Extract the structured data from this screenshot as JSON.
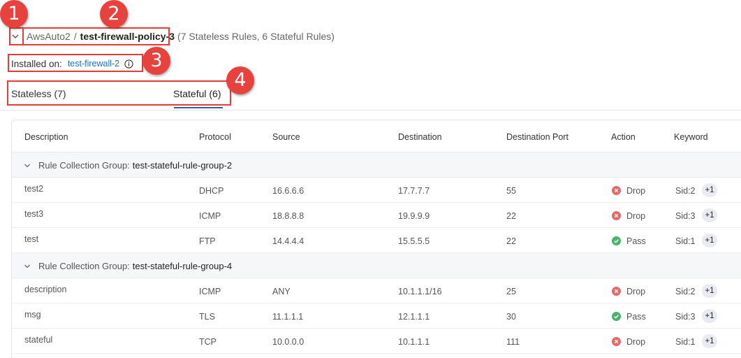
{
  "callouts": [
    "1",
    "2",
    "3",
    "4"
  ],
  "header": {
    "parent": "AwsAuto2",
    "separator": "/",
    "current": "test-firewall-policy-3",
    "summary": "(7 Stateless Rules, 6 Stateful Rules)"
  },
  "installed": {
    "label": "Installed on:",
    "link": "test-firewall-2"
  },
  "tabs": {
    "stateless": "Stateless (7)",
    "stateful": "Stateful (6)",
    "active": "stateful"
  },
  "table": {
    "columns": [
      "Description",
      "Protocol",
      "Source",
      "Destination",
      "Destination Port",
      "Action",
      "Keyword"
    ],
    "group_label": "Rule Collection Group:",
    "groups": [
      {
        "name": "test-stateful-rule-group-2",
        "rows": [
          {
            "description": "test2",
            "protocol": "DHCP",
            "source": "16.6.6.6",
            "destination": "17.7.7.7",
            "port": "55",
            "action": "Drop",
            "keyword": "Sid:2",
            "more": "+1"
          },
          {
            "description": "test3",
            "protocol": "ICMP",
            "source": "18.8.8.8",
            "destination": "19.9.9.9",
            "port": "22",
            "action": "Drop",
            "keyword": "Sid:3",
            "more": "+1"
          },
          {
            "description": "test",
            "protocol": "FTP",
            "source": "14.4.4.4",
            "destination": "15.5.5.5",
            "port": "22",
            "action": "Pass",
            "keyword": "Sid:1",
            "more": "+1"
          }
        ]
      },
      {
        "name": "test-stateful-rule-group-4",
        "rows": [
          {
            "description": "description",
            "protocol": "ICMP",
            "source": "ANY",
            "destination": "10.1.1.1/16",
            "port": "25",
            "action": "Drop",
            "keyword": "Sid:2",
            "more": "+1"
          },
          {
            "description": "msg",
            "protocol": "TLS",
            "source": "11.1.1.1",
            "destination": "12.1.1.1",
            "port": "30",
            "action": "Pass",
            "keyword": "Sid:3",
            "more": "+1"
          },
          {
            "description": "stateful",
            "protocol": "TCP",
            "source": "10.0.0.0",
            "destination": "10.1.1.1",
            "port": "111",
            "action": "Drop",
            "keyword": "Sid:1",
            "more": "+1"
          }
        ]
      }
    ]
  },
  "colors": {
    "callout": "#e8423e",
    "link": "#1a73c2",
    "tab_underline": "#2a5fb8",
    "drop": "#e46a6a",
    "pass": "#49b36a"
  },
  "icons": {
    "toggle": "chevron-down-icon",
    "info": "info-icon",
    "group": "chevron-down-icon",
    "drop": "x-circle-icon",
    "pass": "check-circle-icon"
  }
}
